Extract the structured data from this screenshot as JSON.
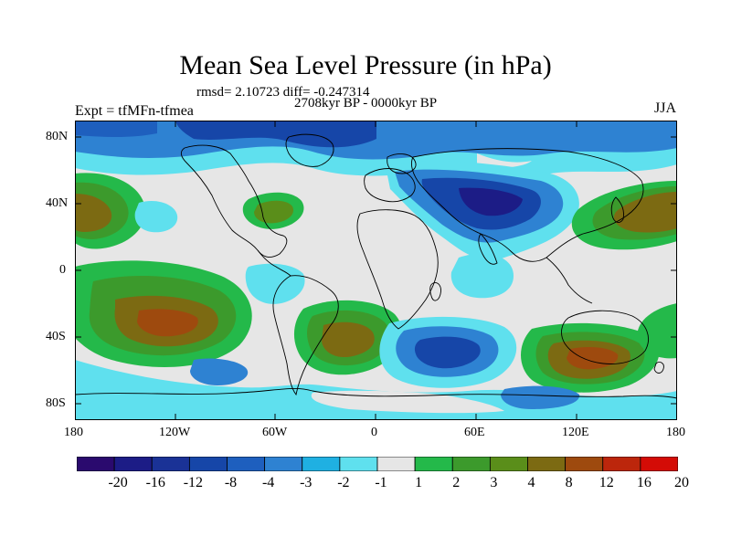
{
  "title": "Mean Sea Level Pressure (in hPa)",
  "stats_line": "rmsd= 2.10723 diff= -0.247314",
  "period": "2708kyr BP - 0000kyr BP",
  "expt_label": "Expt = tfMFn-tfmea",
  "season": "JJA",
  "lat_labels": [
    "80N",
    "40N",
    "0",
    "40S",
    "80S"
  ],
  "lon_labels": [
    "180",
    "120W",
    "60W",
    "0",
    "60E",
    "120E",
    "180"
  ],
  "colorbar": {
    "labels": [
      "-20",
      "-16",
      "-12",
      "-8",
      "-4",
      "-3",
      "-2",
      "-1",
      "1",
      "2",
      "3",
      "4",
      "8",
      "12",
      "16",
      "20"
    ],
    "colors": [
      "#2a0a6e",
      "#1c1c86",
      "#1a3296",
      "#1646a8",
      "#1e5fbe",
      "#2e82d2",
      "#1fb0e2",
      "#5fe0ee",
      "#e6e6e6",
      "#24b94a",
      "#3c9a2c",
      "#5a8e1a",
      "#7c6a12",
      "#9e4a0e",
      "#bc260c",
      "#d40c06"
    ]
  }
}
